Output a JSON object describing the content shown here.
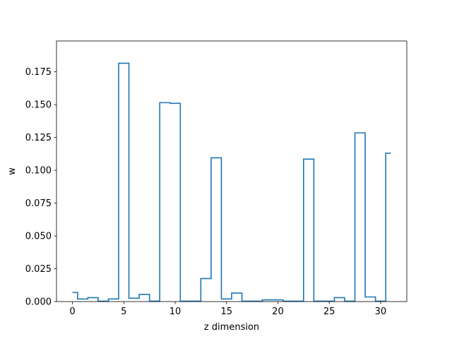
{
  "chart_data": {
    "type": "step",
    "title": "",
    "xlabel": "z dimension",
    "ylabel": "w",
    "x": [
      0,
      1,
      2,
      3,
      4,
      5,
      6,
      7,
      8,
      9,
      10,
      11,
      12,
      13,
      14,
      15,
      16,
      17,
      18,
      19,
      20,
      21,
      22,
      23,
      24,
      25,
      26,
      27,
      28,
      29,
      30,
      31
    ],
    "values": [
      0.007,
      0.002,
      0.003,
      0.0003,
      0.002,
      0.1815,
      0.0025,
      0.0055,
      0.0003,
      0.1515,
      0.151,
      0.0003,
      0.0003,
      0.0175,
      0.1095,
      0.002,
      0.0065,
      0.0003,
      0.0003,
      0.0013,
      0.0013,
      0.0003,
      0.0003,
      0.1085,
      0.0003,
      0.0003,
      0.003,
      0.0003,
      0.1285,
      0.0035,
      0.0003,
      0.113
    ],
    "step_where": "mid",
    "xlim": [
      -1.55,
      32.55
    ],
    "ylim": [
      0,
      0.1985
    ],
    "xticks": [
      0,
      5,
      10,
      15,
      20,
      25,
      30
    ],
    "yticks": [
      0.0,
      0.025,
      0.05,
      0.075,
      0.1,
      0.125,
      0.15,
      0.175
    ],
    "xtick_labels": [
      "0",
      "5",
      "10",
      "15",
      "20",
      "25",
      "30"
    ],
    "ytick_labels": [
      "0.000",
      "0.025",
      "0.050",
      "0.075",
      "0.100",
      "0.125",
      "0.150",
      "0.175"
    ],
    "grid": false,
    "line_color": "#1f77b4"
  }
}
